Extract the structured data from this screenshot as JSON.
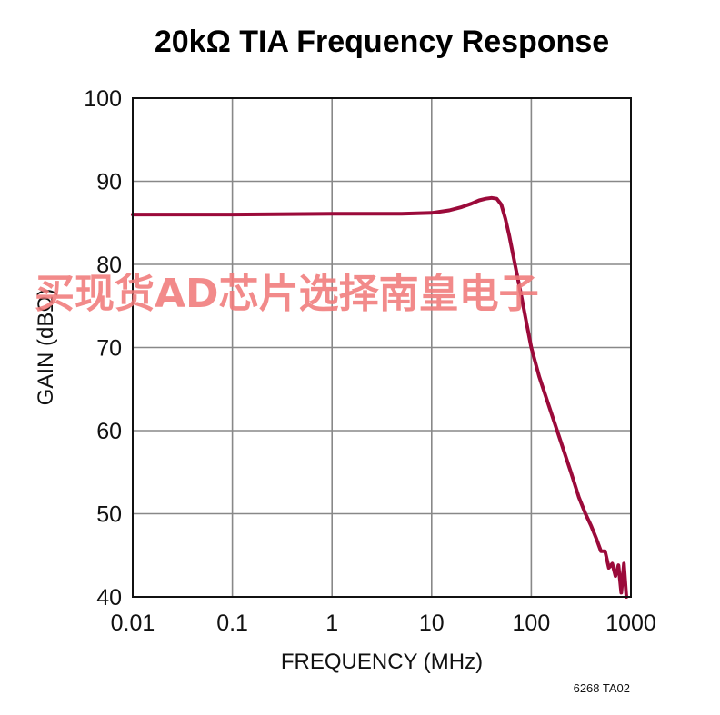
{
  "chart_data": {
    "type": "line",
    "title": "20kΩ TIA Frequency Response",
    "xlabel": "FREQUENCY (MHz)",
    "ylabel": "GAIN (dBΩ)",
    "x_scale": "log",
    "xlim": [
      0.01,
      1000
    ],
    "ylim": [
      40,
      100
    ],
    "grid": true,
    "x_ticks": [
      "0.01",
      "0.1",
      "1",
      "10",
      "100",
      "1000"
    ],
    "y_ticks": [
      "40",
      "50",
      "60",
      "70",
      "80",
      "90",
      "100"
    ],
    "series": [
      {
        "color": "#9b0a3a",
        "x": [
          0.01,
          0.1,
          1,
          5,
          10,
          15,
          20,
          25,
          30,
          35,
          40,
          45,
          50,
          55,
          60,
          70,
          80,
          90,
          100,
          120,
          150,
          200,
          250,
          300,
          350,
          400,
          450,
          500,
          550,
          600,
          650,
          700,
          750,
          800,
          850,
          900
        ],
        "y": [
          86.0,
          86.0,
          86.1,
          86.1,
          86.2,
          86.5,
          86.9,
          87.3,
          87.7,
          87.9,
          88.0,
          87.9,
          87.2,
          85.5,
          83.5,
          79.5,
          76.0,
          72.8,
          70.0,
          66.5,
          63.0,
          58.5,
          55.0,
          52.0,
          50.0,
          48.5,
          47.0,
          45.5,
          45.5,
          43.5,
          44.0,
          42.5,
          43.8,
          40.5,
          44.0,
          40.0
        ]
      }
    ],
    "annotations": [
      "6268 TA02"
    ]
  },
  "watermark": {
    "text": "买现货AD芯片选择南皇电子",
    "color": "#f07a7a"
  },
  "colors": {
    "line": "#9b0a3a",
    "grid": "#888888",
    "frame": "#111111"
  }
}
